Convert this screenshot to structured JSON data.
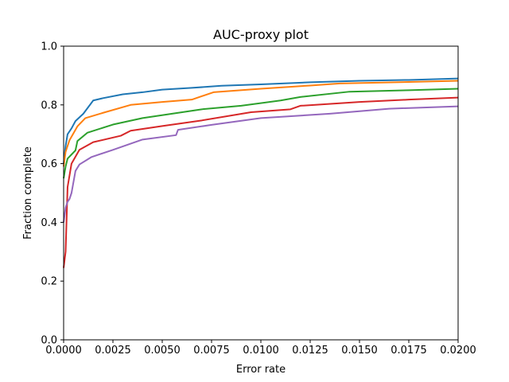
{
  "chart_data": {
    "type": "line",
    "title": "AUC-proxy plot",
    "xlabel": "Error rate",
    "ylabel": "Fraction complete",
    "xlim": [
      0.0,
      0.02
    ],
    "ylim": [
      0.0,
      1.0
    ],
    "xticks": [
      "0.0000",
      "0.0025",
      "0.0050",
      "0.0075",
      "0.0100",
      "0.0125",
      "0.0150",
      "0.0175",
      "0.0200"
    ],
    "yticks": [
      "0.0",
      "0.2",
      "0.4",
      "0.6",
      "0.8",
      "1.0"
    ],
    "grid": false,
    "legend": "none",
    "series": [
      {
        "color": "#1f77b4",
        "x": [
          0.0,
          0.0001,
          0.0002,
          0.0004,
          0.0006,
          0.001,
          0.0015,
          0.002,
          0.003,
          0.004,
          0.005,
          0.0065,
          0.008,
          0.01,
          0.0125,
          0.015,
          0.0175,
          0.02
        ],
        "y": [
          0.6,
          0.66,
          0.7,
          0.72,
          0.745,
          0.77,
          0.815,
          0.823,
          0.836,
          0.843,
          0.852,
          0.858,
          0.865,
          0.87,
          0.877,
          0.882,
          0.885,
          0.89
        ]
      },
      {
        "color": "#ff7f0e",
        "x": [
          0.0,
          0.0001,
          0.0003,
          0.0007,
          0.0011,
          0.002,
          0.0034,
          0.005,
          0.0065,
          0.0076,
          0.01,
          0.0125,
          0.014,
          0.0175,
          0.02
        ],
        "y": [
          0.59,
          0.64,
          0.68,
          0.727,
          0.755,
          0.773,
          0.8,
          0.81,
          0.818,
          0.843,
          0.855,
          0.866,
          0.873,
          0.878,
          0.882
        ]
      },
      {
        "color": "#2ca02c",
        "x": [
          0.0,
          0.0001,
          0.0002,
          0.0006,
          0.0007,
          0.0012,
          0.0025,
          0.004,
          0.0055,
          0.007,
          0.009,
          0.011,
          0.012,
          0.0145,
          0.0175,
          0.02
        ],
        "y": [
          0.55,
          0.59,
          0.617,
          0.645,
          0.677,
          0.705,
          0.733,
          0.755,
          0.77,
          0.785,
          0.797,
          0.815,
          0.827,
          0.845,
          0.85,
          0.855
        ]
      },
      {
        "color": "#d62728",
        "x": [
          0.0,
          0.0001,
          0.0002,
          0.0004,
          0.0008,
          0.0015,
          0.0029,
          0.0034,
          0.005,
          0.007,
          0.0095,
          0.0115,
          0.012,
          0.015,
          0.0175,
          0.02
        ],
        "y": [
          0.245,
          0.3,
          0.52,
          0.6,
          0.647,
          0.673,
          0.695,
          0.712,
          0.728,
          0.747,
          0.775,
          0.785,
          0.797,
          0.81,
          0.818,
          0.825
        ]
      },
      {
        "color": "#9467bd",
        "x": [
          0.0,
          0.0001,
          0.0002,
          0.0003,
          0.0004,
          0.0006,
          0.0008,
          0.0014,
          0.0025,
          0.004,
          0.0057,
          0.0058,
          0.0075,
          0.01,
          0.0135,
          0.0165,
          0.02
        ],
        "y": [
          0.4,
          0.45,
          0.47,
          0.48,
          0.5,
          0.575,
          0.597,
          0.622,
          0.647,
          0.682,
          0.697,
          0.715,
          0.732,
          0.755,
          0.77,
          0.787,
          0.795
        ]
      }
    ]
  }
}
